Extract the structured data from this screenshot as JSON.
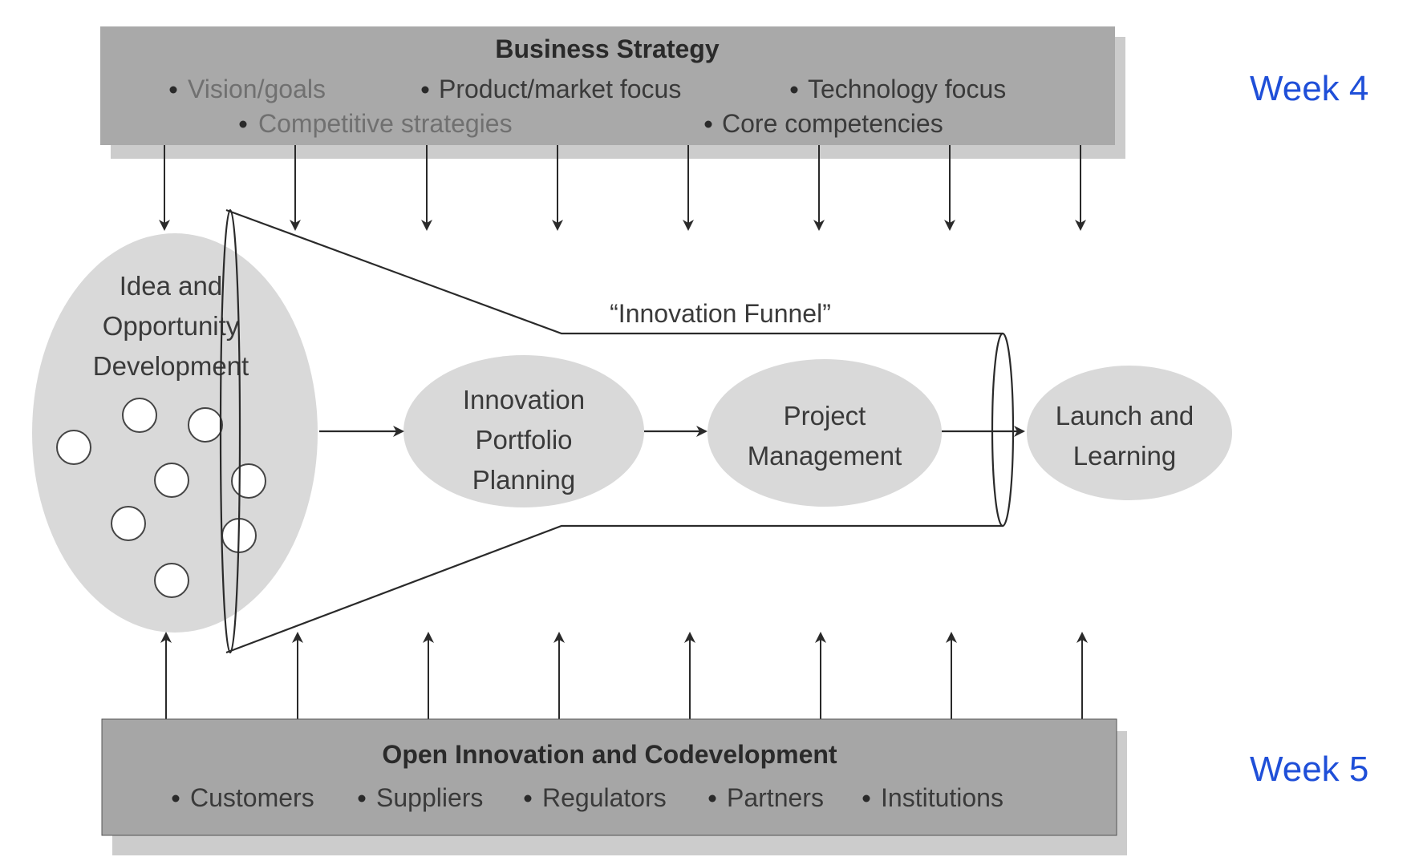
{
  "business_strategy": {
    "title": "Business Strategy",
    "items": [
      "Vision/goals",
      "Product/market focus",
      "Technology focus",
      "Competitive strategies",
      "Core competencies"
    ]
  },
  "open_innovation": {
    "title": "Open Innovation and Codevelopment",
    "items": [
      "Customers",
      "Suppliers",
      "Regulators",
      "Partners",
      "Institutions"
    ]
  },
  "idea_development": {
    "lines": [
      "Idea and",
      "Opportunity",
      "Development"
    ]
  },
  "funnel_label": "“Innovation Funnel”",
  "portfolio": {
    "lines": [
      "Innovation",
      "Portfolio",
      "Planning"
    ]
  },
  "project": {
    "lines": [
      "Project",
      "Management"
    ]
  },
  "launch": {
    "lines": [
      "Launch and",
      "Learning"
    ]
  },
  "weeks": {
    "top": "Week 4",
    "bottom": "Week 5"
  },
  "colors": {
    "top_band": "#a9a9a9",
    "bottom_band": "#a6a6a6",
    "ellipse_fill": "#d9d9d9",
    "week_text": "#1f4fd8"
  }
}
